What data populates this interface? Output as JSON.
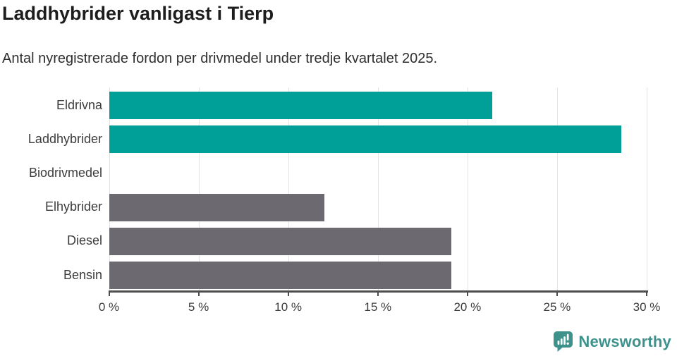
{
  "header": {
    "title": "Laddhybrider vanligast i Tierp",
    "subtitle": "Antal nyregistrerade fordon per drivmedel under tredje kvartalet 2025."
  },
  "chart_data": {
    "type": "bar",
    "orientation": "horizontal",
    "categories": [
      "Eldrivna",
      "Laddhybrider",
      "Biodrivmedel",
      "Elhybrider",
      "Diesel",
      "Bensin"
    ],
    "values": [
      21.4,
      28.6,
      0,
      12.0,
      19.1,
      19.1
    ],
    "unit": "%",
    "bar_colors": [
      "#00a099",
      "#00a099",
      "#6c6a70",
      "#6c6a70",
      "#6c6a70",
      "#6c6a70"
    ],
    "highlight_color": "#00a099",
    "default_color": "#6c6a70",
    "title": "Laddhybrider vanligast i Tierp",
    "subtitle": "Antal nyregistrerade fordon per drivmedel under tredje kvartalet 2025.",
    "xlabel": "",
    "ylabel": "",
    "xlim": [
      0,
      30
    ],
    "ticks": [
      0,
      5,
      10,
      15,
      20,
      25,
      30
    ],
    "tick_labels": [
      "0 %",
      "5 %",
      "10 %",
      "15 %",
      "20 %",
      "25 %",
      "30 %"
    ],
    "grid": "vertical",
    "legend": "none",
    "gridline_color": "#e3e3e3",
    "axis_color": "#4d4d4d"
  },
  "footer": {
    "logo_text": "Newsworthy",
    "logo_icon": "speech-bubble-bar-chart-icon",
    "logo_color": "#3f928c"
  }
}
